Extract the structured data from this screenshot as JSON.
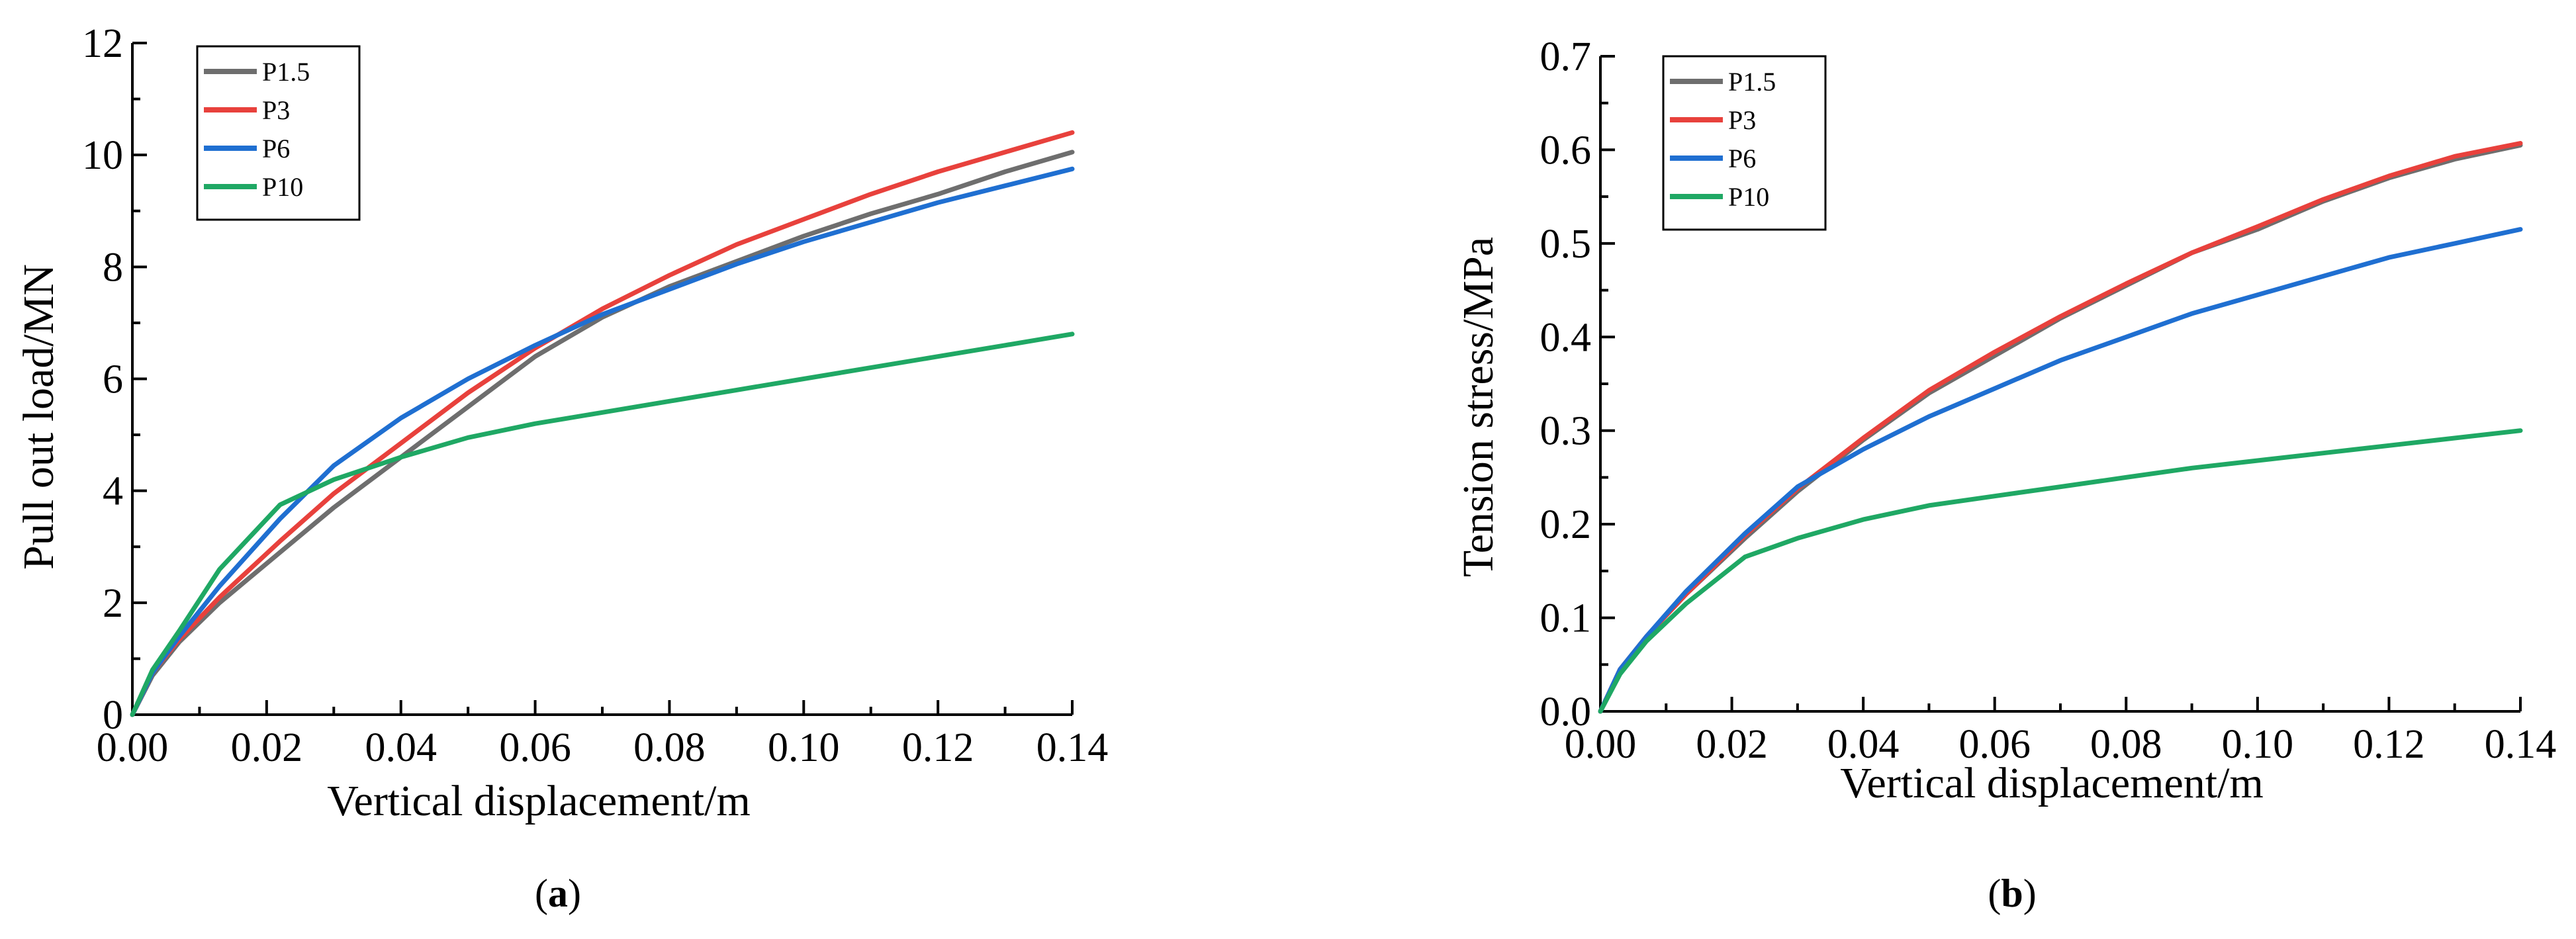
{
  "chart_data": [
    {
      "type": "line",
      "panel_label": "a",
      "xlabel": "Vertical displacement/m",
      "ylabel": "Pull out load/MN",
      "xlim": [
        0,
        0.14
      ],
      "ylim": [
        0,
        12
      ],
      "xticks": [
        "0.00",
        "0.02",
        "0.04",
        "0.06",
        "0.08",
        "0.10",
        "0.12",
        "0.14"
      ],
      "yticks": [
        "0",
        "2",
        "4",
        "6",
        "8",
        "10",
        "12"
      ],
      "legend_position": "top-left",
      "grid": false,
      "series": [
        {
          "name": "P1.5",
          "color": "#6e6e6e",
          "x": [
            0,
            0.003,
            0.007,
            0.013,
            0.022,
            0.03,
            0.04,
            0.05,
            0.06,
            0.07,
            0.08,
            0.09,
            0.1,
            0.11,
            0.12,
            0.13,
            0.14
          ],
          "y": [
            0,
            0.7,
            1.3,
            2.0,
            2.9,
            3.7,
            4.6,
            5.5,
            6.4,
            7.1,
            7.65,
            8.1,
            8.55,
            8.95,
            9.3,
            9.7,
            10.05
          ]
        },
        {
          "name": "P3",
          "color": "#e8413c",
          "x": [
            0,
            0.003,
            0.007,
            0.013,
            0.022,
            0.03,
            0.04,
            0.05,
            0.06,
            0.07,
            0.08,
            0.09,
            0.1,
            0.11,
            0.12,
            0.13,
            0.14
          ],
          "y": [
            0,
            0.75,
            1.35,
            2.1,
            3.1,
            3.95,
            4.85,
            5.75,
            6.55,
            7.25,
            7.85,
            8.4,
            8.85,
            9.3,
            9.7,
            10.05,
            10.4
          ]
        },
        {
          "name": "P6",
          "color": "#1f6fd1",
          "x": [
            0,
            0.003,
            0.007,
            0.013,
            0.022,
            0.03,
            0.04,
            0.05,
            0.06,
            0.07,
            0.08,
            0.09,
            0.1,
            0.11,
            0.12,
            0.13,
            0.14
          ],
          "y": [
            0,
            0.75,
            1.4,
            2.3,
            3.5,
            4.45,
            5.3,
            6.0,
            6.6,
            7.15,
            7.6,
            8.05,
            8.45,
            8.8,
            9.15,
            9.45,
            9.75
          ]
        },
        {
          "name": "P10",
          "color": "#1fa864",
          "x": [
            0,
            0.003,
            0.007,
            0.013,
            0.022,
            0.03,
            0.04,
            0.05,
            0.06,
            0.07,
            0.08,
            0.09,
            0.1,
            0.11,
            0.12,
            0.13,
            0.135,
            0.14
          ],
          "y": [
            0,
            0.8,
            1.5,
            2.6,
            3.75,
            4.2,
            4.6,
            4.95,
            5.2,
            5.4,
            5.6,
            5.8,
            6.0,
            6.2,
            6.4,
            6.6,
            6.7,
            6.8
          ]
        }
      ]
    },
    {
      "type": "line",
      "panel_label": "b",
      "xlabel": "Vertical displacement/m",
      "ylabel": "Tension stress/MPa",
      "xlim": [
        0,
        0.14
      ],
      "ylim": [
        0,
        0.7
      ],
      "xticks": [
        "0.00",
        "0.02",
        "0.04",
        "0.06",
        "0.08",
        "0.10",
        "0.12",
        "0.14"
      ],
      "yticks": [
        "0.0",
        "0.1",
        "0.2",
        "0.3",
        "0.4",
        "0.5",
        "0.6",
        "0.7"
      ],
      "legend_position": "top-left",
      "grid": false,
      "series": [
        {
          "name": "P1.5",
          "color": "#6e6e6e",
          "x": [
            0,
            0.003,
            0.007,
            0.013,
            0.022,
            0.03,
            0.04,
            0.05,
            0.06,
            0.07,
            0.08,
            0.09,
            0.1,
            0.11,
            0.12,
            0.13,
            0.14
          ],
          "y": [
            0,
            0.045,
            0.08,
            0.125,
            0.185,
            0.235,
            0.29,
            0.34,
            0.38,
            0.42,
            0.455,
            0.49,
            0.515,
            0.545,
            0.57,
            0.59,
            0.605
          ]
        },
        {
          "name": "P3",
          "color": "#e8413c",
          "x": [
            0,
            0.003,
            0.007,
            0.013,
            0.022,
            0.03,
            0.04,
            0.05,
            0.06,
            0.07,
            0.08,
            0.09,
            0.1,
            0.11,
            0.12,
            0.13,
            0.14
          ],
          "y": [
            0,
            0.045,
            0.08,
            0.125,
            0.188,
            0.238,
            0.292,
            0.343,
            0.384,
            0.422,
            0.457,
            0.49,
            0.518,
            0.547,
            0.572,
            0.593,
            0.607
          ]
        },
        {
          "name": "P6",
          "color": "#1f6fd1",
          "x": [
            0,
            0.003,
            0.007,
            0.013,
            0.022,
            0.03,
            0.04,
            0.05,
            0.06,
            0.07,
            0.08,
            0.09,
            0.1,
            0.11,
            0.12,
            0.13,
            0.14
          ],
          "y": [
            0,
            0.045,
            0.08,
            0.128,
            0.19,
            0.24,
            0.28,
            0.315,
            0.345,
            0.375,
            0.4,
            0.425,
            0.445,
            0.465,
            0.485,
            0.5,
            0.515
          ]
        },
        {
          "name": "P10",
          "color": "#1fa864",
          "x": [
            0,
            0.003,
            0.007,
            0.013,
            0.022,
            0.03,
            0.04,
            0.05,
            0.06,
            0.07,
            0.08,
            0.09,
            0.1,
            0.11,
            0.12,
            0.13,
            0.14
          ],
          "y": [
            0,
            0.04,
            0.075,
            0.115,
            0.165,
            0.185,
            0.205,
            0.22,
            0.23,
            0.24,
            0.25,
            0.26,
            0.268,
            0.276,
            0.284,
            0.292,
            0.3
          ]
        }
      ]
    }
  ],
  "captions": [
    {
      "open": "(",
      "letter": "a",
      "close": ")"
    },
    {
      "open": "(",
      "letter": "b",
      "close": ")"
    }
  ]
}
